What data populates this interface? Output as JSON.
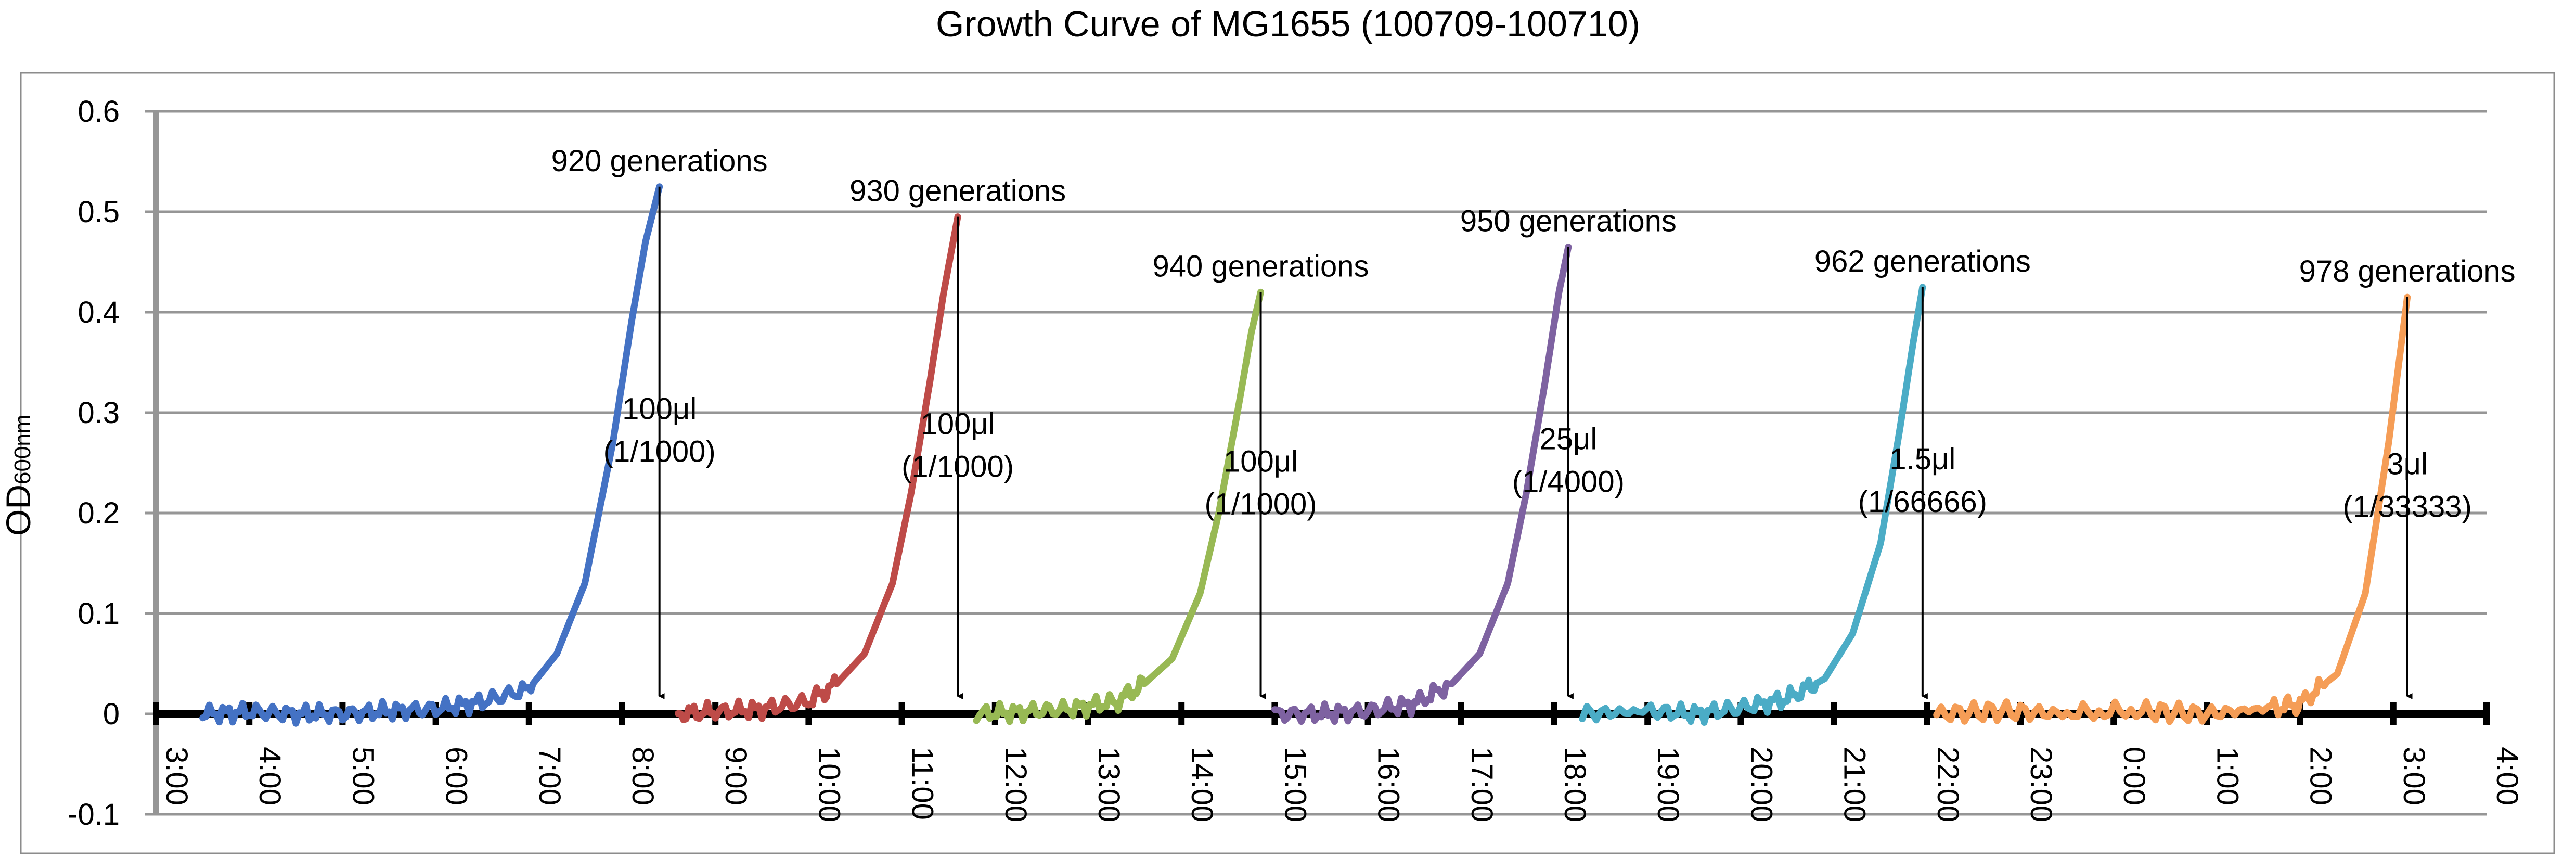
{
  "chart_data": {
    "type": "line",
    "title": "Growth Curve of MG1655 (100709-100710)",
    "ylabel": "OD",
    "ylabel_sub": "600nm",
    "xlabel": "",
    "ylim": [
      -0.1,
      0.6
    ],
    "yticks": [
      "-0.1",
      "0",
      "0.1",
      "0.2",
      "0.3",
      "0.4",
      "0.5",
      "0.6"
    ],
    "xlim": [
      3,
      28
    ],
    "xticks": [
      "3:00",
      "4:00",
      "5:00",
      "6:00",
      "7:00",
      "8:00",
      "9:00",
      "10:00",
      "11:00",
      "12:00",
      "13:00",
      "14:00",
      "15:00",
      "16:00",
      "17:00",
      "18:00",
      "19:00",
      "20:00",
      "21:00",
      "22:00",
      "23:00",
      "0:00",
      "1:00",
      "2:00",
      "3:00",
      "4:00"
    ],
    "grid": true,
    "legend": "none",
    "series": [
      {
        "color": "#4472c4",
        "x": [
          3.5,
          4.0,
          4.5,
          5.0,
          5.5,
          6.0,
          6.5,
          7.0,
          7.3,
          7.6,
          7.9,
          8.1,
          8.25,
          8.4
        ],
        "y": [
          0.0,
          0.002,
          0.0,
          0.0,
          0.003,
          0.005,
          0.012,
          0.025,
          0.06,
          0.13,
          0.27,
          0.39,
          0.47,
          0.525
        ]
      },
      {
        "color": "#be4b48",
        "x": [
          8.6,
          9.0,
          9.5,
          10.0,
          10.3,
          10.6,
          10.9,
          11.1,
          11.3,
          11.45,
          11.6
        ],
        "y": [
          0.0,
          0.002,
          0.005,
          0.012,
          0.03,
          0.06,
          0.13,
          0.22,
          0.33,
          0.42,
          0.495
        ]
      },
      {
        "color": "#98b954",
        "x": [
          11.8,
          12.3,
          12.8,
          13.3,
          13.6,
          13.9,
          14.2,
          14.4,
          14.6,
          14.75,
          14.85
        ],
        "y": [
          0.0,
          0.002,
          0.005,
          0.012,
          0.03,
          0.055,
          0.12,
          0.2,
          0.3,
          0.38,
          0.42
        ]
      },
      {
        "color": "#7e62a1",
        "x": [
          15.0,
          15.5,
          16.0,
          16.5,
          16.9,
          17.2,
          17.5,
          17.7,
          17.9,
          18.05,
          18.15
        ],
        "y": [
          0.0,
          0.0,
          0.003,
          0.01,
          0.03,
          0.06,
          0.13,
          0.22,
          0.33,
          0.42,
          0.465
        ]
      },
      {
        "color": "#4bacc6",
        "x": [
          18.3,
          19.0,
          19.5,
          20.0,
          20.5,
          20.9,
          21.2,
          21.5,
          21.7,
          21.85,
          21.95
        ],
        "y": [
          0.0,
          0.003,
          0.0,
          0.006,
          0.015,
          0.035,
          0.08,
          0.17,
          0.28,
          0.37,
          0.425
        ]
      },
      {
        "color": "#f59d56",
        "x": [
          22.1,
          22.8,
          23.5,
          24.3,
          25.0,
          25.7,
          26.0,
          26.4,
          26.7,
          26.95,
          27.15
        ],
        "y": [
          0.0,
          0.003,
          0.0,
          0.003,
          0.0,
          0.006,
          0.01,
          0.04,
          0.12,
          0.27,
          0.415
        ]
      }
    ],
    "annotations": [
      {
        "label": "920 generations",
        "dilution": "100μl",
        "ratio": "(1/1000)",
        "x": 8.4,
        "ytop": 0.525
      },
      {
        "label": "930 generations",
        "dilution": "100μl",
        "ratio": "(1/1000)",
        "x": 11.6,
        "ytop": 0.495
      },
      {
        "label": "940 generations",
        "dilution": "100μl",
        "ratio": "(1/1000)",
        "x": 14.85,
        "ytop": 0.42
      },
      {
        "label": "950 generations",
        "dilution": "25μl",
        "ratio": "(1/4000)",
        "x": 18.15,
        "ytop": 0.465
      },
      {
        "label": "962 generations",
        "dilution": "1.5μl",
        "ratio": "(1/66666)",
        "x": 21.95,
        "ytop": 0.425
      },
      {
        "label": "978 generations",
        "dilution": "3μl",
        "ratio": "(1/33333)",
        "x": 27.15,
        "ytop": 0.415
      }
    ]
  }
}
